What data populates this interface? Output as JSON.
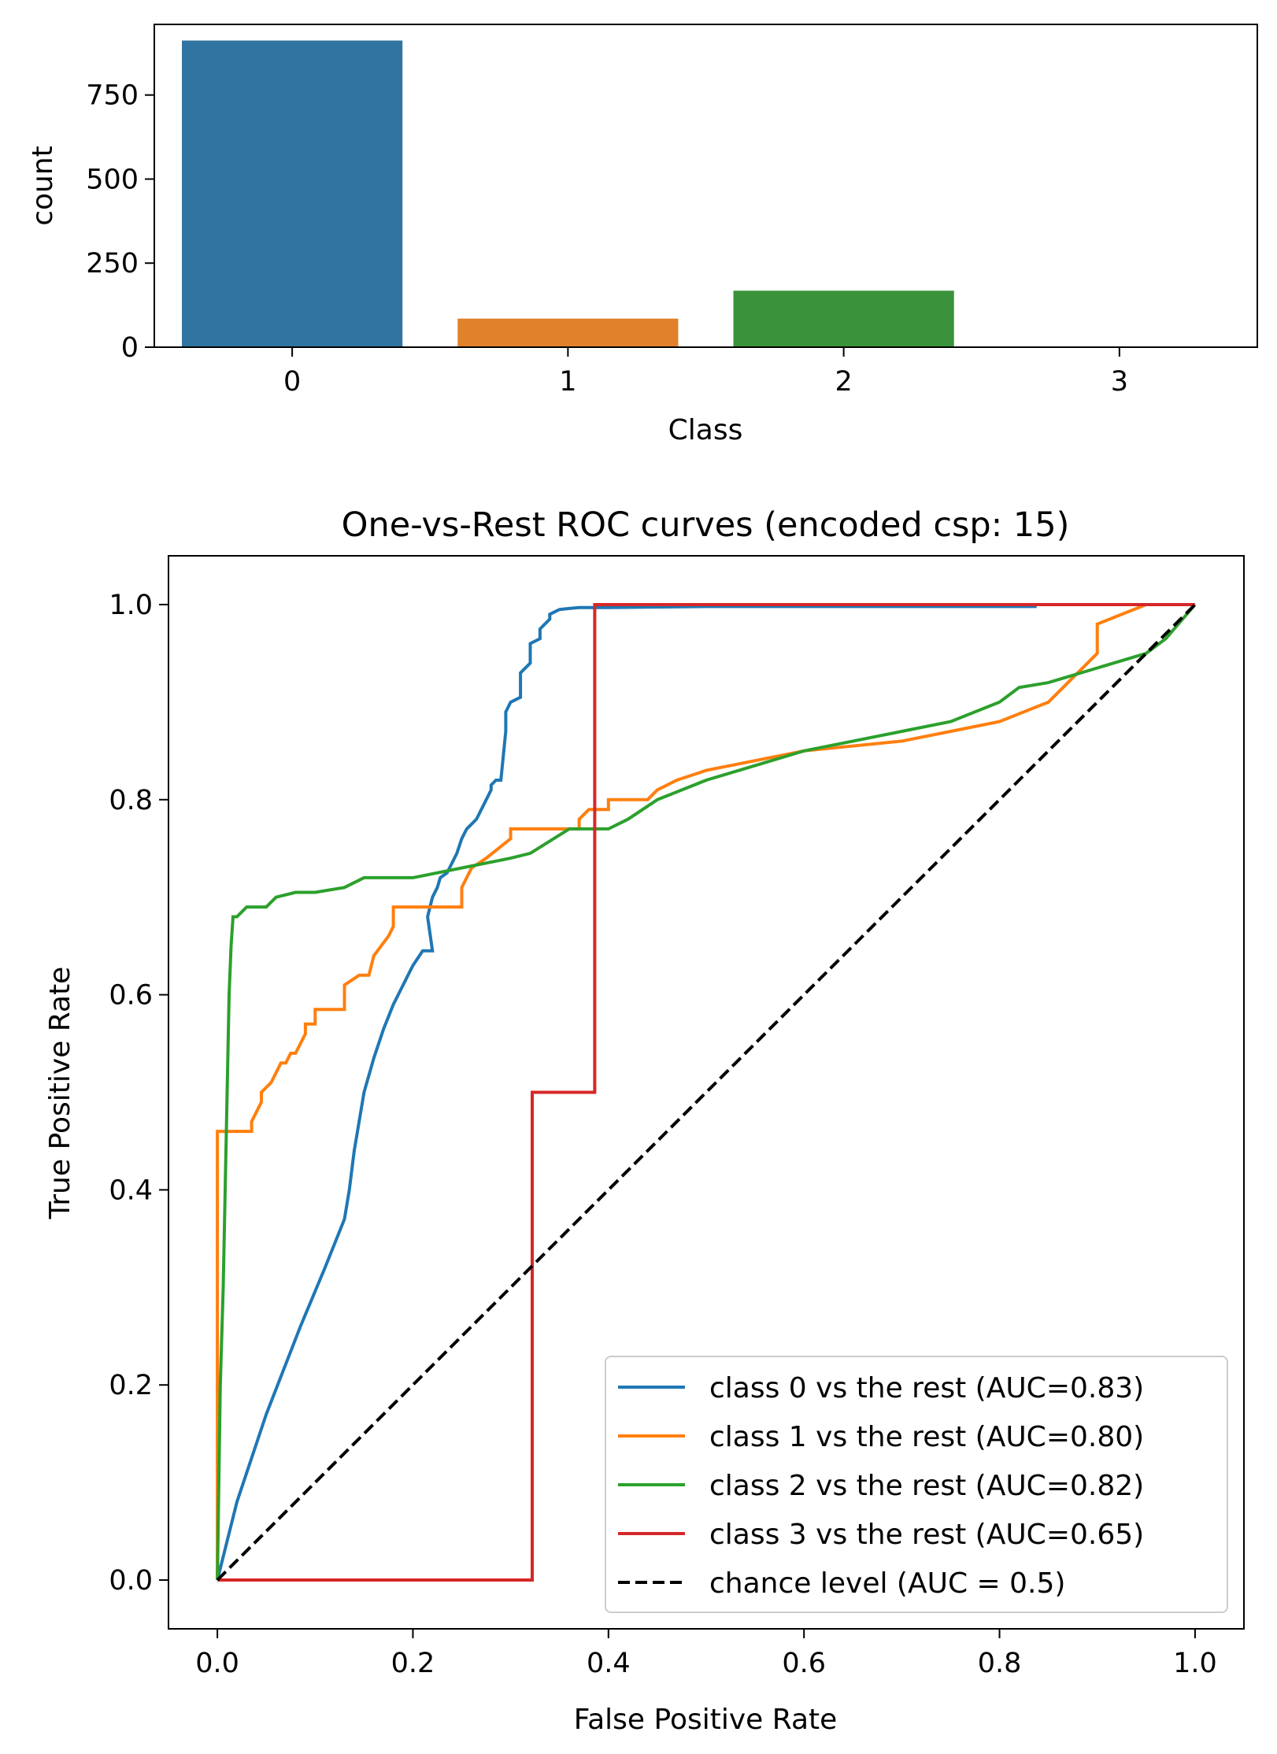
{
  "chart_data": [
    {
      "type": "bar",
      "categories": [
        "0",
        "1",
        "2",
        "3"
      ],
      "values": [
        912,
        85,
        168,
        2
      ],
      "colors": [
        "#3274a1",
        "#e1812c",
        "#3a923a",
        "#c03d3e"
      ],
      "xlabel": "Class",
      "ylabel": "count",
      "ylim": [
        0,
        960
      ],
      "yticks": [
        "0",
        "250",
        "500",
        "750"
      ],
      "grid": false
    },
    {
      "type": "line",
      "title": "One-vs-Rest ROC curves (encoded csp: 15)",
      "xlabel": "False Positive Rate",
      "ylabel": "True Positive Rate",
      "xlim": [
        -0.05,
        1.05
      ],
      "ylim": [
        -0.05,
        1.05
      ],
      "xticks": [
        "0.0",
        "0.2",
        "0.4",
        "0.6",
        "0.8",
        "1.0"
      ],
      "yticks": [
        "0.0",
        "0.2",
        "0.4",
        "0.6",
        "0.8",
        "1.0"
      ],
      "grid": false,
      "legend_position": "lower-right",
      "series": [
        {
          "name": "class 0 vs the rest (AUC=0.83)",
          "color": "#1f77b4",
          "x": [
            0.0,
            0.02,
            0.05,
            0.085,
            0.11,
            0.13,
            0.135,
            0.14,
            0.15,
            0.16,
            0.17,
            0.18,
            0.195,
            0.2,
            0.21,
            0.22,
            0.215,
            0.22,
            0.225,
            0.228,
            0.235,
            0.24,
            0.245,
            0.25,
            0.255,
            0.26,
            0.265,
            0.27,
            0.275,
            0.28,
            0.28,
            0.285,
            0.29,
            0.295,
            0.295,
            0.3,
            0.31,
            0.31,
            0.32,
            0.32,
            0.33,
            0.33,
            0.335,
            0.34,
            0.34,
            0.35,
            0.36,
            0.37,
            0.38,
            0.4,
            0.5,
            0.6,
            0.7,
            0.8,
            0.838
          ],
          "y": [
            0.0,
            0.08,
            0.17,
            0.26,
            0.32,
            0.37,
            0.4,
            0.44,
            0.5,
            0.535,
            0.565,
            0.59,
            0.62,
            0.63,
            0.645,
            0.645,
            0.68,
            0.7,
            0.71,
            0.72,
            0.725,
            0.735,
            0.745,
            0.76,
            0.77,
            0.775,
            0.78,
            0.79,
            0.8,
            0.81,
            0.815,
            0.82,
            0.82,
            0.87,
            0.89,
            0.9,
            0.905,
            0.93,
            0.94,
            0.96,
            0.965,
            0.975,
            0.98,
            0.985,
            0.99,
            0.995,
            0.996,
            0.997,
            0.997,
            0.997,
            0.998,
            0.998,
            0.998,
            0.998,
            0.998
          ]
        },
        {
          "name": "class 1 vs the rest (AUC=0.80)",
          "color": "#ff7f0e",
          "x": [
            0.0,
            0.0,
            0.035,
            0.035,
            0.045,
            0.045,
            0.055,
            0.06,
            0.065,
            0.07,
            0.075,
            0.08,
            0.09,
            0.09,
            0.1,
            0.1,
            0.13,
            0.13,
            0.145,
            0.155,
            0.16,
            0.175,
            0.18,
            0.18,
            0.25,
            0.25,
            0.26,
            0.275,
            0.3,
            0.3,
            0.37,
            0.37,
            0.38,
            0.38,
            0.4,
            0.4,
            0.44,
            0.45,
            0.47,
            0.5,
            0.55,
            0.6,
            0.7,
            0.75,
            0.8,
            0.85,
            0.87,
            0.88,
            0.9,
            0.9,
            0.95,
            1.0
          ],
          "y": [
            0.0,
            0.46,
            0.46,
            0.47,
            0.49,
            0.5,
            0.51,
            0.52,
            0.53,
            0.53,
            0.54,
            0.54,
            0.56,
            0.57,
            0.57,
            0.585,
            0.585,
            0.61,
            0.62,
            0.62,
            0.64,
            0.66,
            0.67,
            0.69,
            0.69,
            0.71,
            0.73,
            0.74,
            0.76,
            0.77,
            0.77,
            0.78,
            0.79,
            0.79,
            0.79,
            0.8,
            0.8,
            0.81,
            0.82,
            0.83,
            0.84,
            0.85,
            0.86,
            0.87,
            0.88,
            0.9,
            0.92,
            0.93,
            0.95,
            0.98,
            1.0,
            1.0
          ]
        },
        {
          "name": "class 2 vs the rest (AUC=0.82)",
          "color": "#2ca02c",
          "x": [
            0.0,
            0.003,
            0.006,
            0.008,
            0.01,
            0.012,
            0.014,
            0.016,
            0.018,
            0.02,
            0.025,
            0.03,
            0.04,
            0.05,
            0.06,
            0.08,
            0.1,
            0.13,
            0.15,
            0.2,
            0.25,
            0.3,
            0.32,
            0.36,
            0.4,
            0.42,
            0.45,
            0.5,
            0.55,
            0.6,
            0.65,
            0.7,
            0.75,
            0.8,
            0.82,
            0.85,
            0.9,
            0.95,
            0.97,
            1.0
          ],
          "y": [
            0.0,
            0.2,
            0.3,
            0.4,
            0.5,
            0.6,
            0.65,
            0.68,
            0.68,
            0.68,
            0.685,
            0.69,
            0.69,
            0.69,
            0.7,
            0.705,
            0.705,
            0.71,
            0.72,
            0.72,
            0.73,
            0.74,
            0.745,
            0.77,
            0.77,
            0.78,
            0.8,
            0.82,
            0.835,
            0.85,
            0.86,
            0.87,
            0.88,
            0.9,
            0.915,
            0.92,
            0.935,
            0.95,
            0.965,
            1.0
          ]
        },
        {
          "name": "class 3 vs the rest (AUC=0.65)",
          "color": "#d62728",
          "x": [
            0.0,
            0.322,
            0.322,
            0.386,
            0.386,
            1.0
          ],
          "y": [
            0.0,
            0.0,
            0.5,
            0.5,
            1.0,
            1.0
          ]
        },
        {
          "name": "chance level (AUC = 0.5)",
          "color": "#000000",
          "dashed": true,
          "x": [
            0.0,
            1.0
          ],
          "y": [
            0.0,
            1.0
          ]
        }
      ]
    }
  ]
}
